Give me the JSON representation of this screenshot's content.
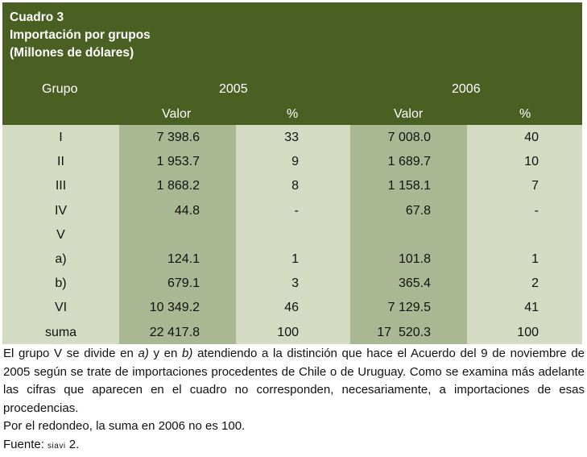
{
  "title": {
    "line1": "Cuadro 3",
    "line2": "Importación por grupos",
    "line3": "(Millones de dólares)"
  },
  "headers": {
    "grupo": "Grupo",
    "year1": "2005",
    "year2": "2006",
    "valor1": "Valor",
    "pct1": "%",
    "valor2": "Valor",
    "pct2": "%"
  },
  "rows": [
    {
      "grupo": "I",
      "v2005": "7 398.6",
      "p2005": "33",
      "v2006": "7 008.0",
      "p2006": "40"
    },
    {
      "grupo": "II",
      "v2005": "1 953.7",
      "p2005": "9",
      "v2006": "1 689.7",
      "p2006": "10"
    },
    {
      "grupo": "III",
      "v2005": "1 868.2",
      "p2005": "8",
      "v2006": "1 158.1",
      "p2006": "7"
    },
    {
      "grupo": "IV",
      "v2005": "44.8",
      "p2005": "-",
      "v2006": "67.8",
      "p2006": "-"
    },
    {
      "grupo": "V",
      "v2005": "",
      "p2005": "",
      "v2006": "",
      "p2006": ""
    },
    {
      "grupo": "a)",
      "v2005": "124.1",
      "p2005": "1",
      "v2006": "101.8",
      "p2006": "1"
    },
    {
      "grupo": "b)",
      "v2005": "679.1",
      "p2005": "3",
      "v2006": "365.4",
      "p2006": "2"
    },
    {
      "grupo": "VI",
      "v2005": "10 349.2",
      "p2005": "46",
      "v2006": "7 129.5",
      "p2006": "41"
    },
    {
      "grupo": "suma",
      "v2005": "22 417.8",
      "p2005": "100",
      "v2006": "17  520.3",
      "p2006": "100"
    }
  ],
  "notes": {
    "n1_a": "El grupo V se divide en ",
    "n1_b": "a)",
    "n1_c": " y en ",
    "n1_d": "b)",
    "n1_e": " atendiendo a la distinción que hace el Acuerdo del 9 de noviembre de 2005 según se trate de importaciones procedentes de Chile o de Uruguay. Como se examina más adelante las cifras que aparecen en el cuadro no corresponden, necesariamente, a importaciones de esas procedencias.",
    "n2": "Por el redondeo, la suma en 2006 no es 100.",
    "source_label": "Fuente: ",
    "source_name": "siavi",
    "source_num": " 2."
  }
}
